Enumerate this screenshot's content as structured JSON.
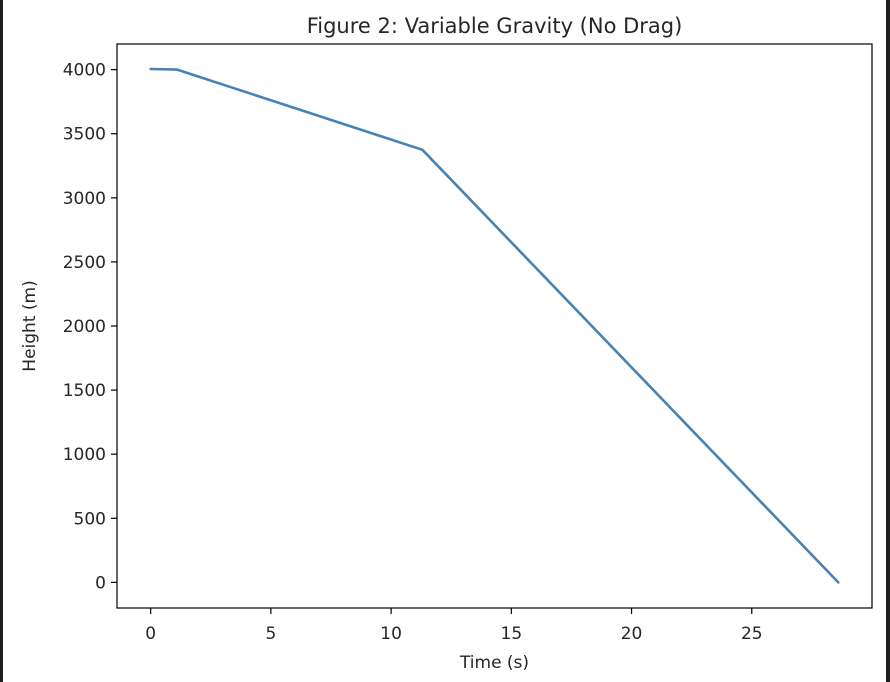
{
  "chart_data": {
    "type": "line",
    "title": "Figure 2: Variable Gravity (No Drag)",
    "xlabel": "Time (s)",
    "ylabel": "Height (m)",
    "xlim": [
      -1.4,
      30.0
    ],
    "ylim": [
      -200,
      4200
    ],
    "xticks": [
      0,
      5,
      10,
      15,
      20,
      25
    ],
    "yticks": [
      0,
      500,
      1000,
      1500,
      2000,
      2500,
      3000,
      3500,
      4000
    ],
    "grid": false,
    "series": [
      {
        "color": "#4682b4",
        "x": [
          0,
          1.1,
          11.3,
          28.6
        ],
        "y": [
          4005,
          4000,
          3375,
          0
        ]
      }
    ]
  }
}
